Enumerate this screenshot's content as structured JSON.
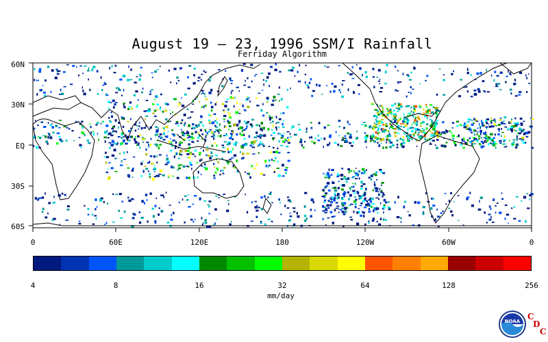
{
  "title": "August 19 – 23, 1996 SSM/I Rainfall",
  "subtitle": "Ferriday Algorithm",
  "lat_labels": [
    "60N",
    "30N",
    "EQ",
    "30S",
    "60S"
  ],
  "lon_labels": [
    "0",
    "60E",
    "120E",
    "180",
    "120W",
    "60W",
    "0"
  ],
  "colorbar": {
    "colors": [
      "#001a80",
      "#0033b3",
      "#0055ff",
      "#009999",
      "#00cccc",
      "#00ffff",
      "#008a00",
      "#00c000",
      "#00ff00",
      "#b3b300",
      "#d9d900",
      "#ffff00",
      "#ff5500",
      "#ff8000",
      "#ffaa00",
      "#990000",
      "#cc0000",
      "#ff0000"
    ],
    "tick_labels": [
      "4",
      "8",
      "16",
      "32",
      "64",
      "128",
      "256"
    ],
    "units": "mm/day"
  },
  "logo": {
    "org": "NOAA",
    "letters": [
      "C",
      "D",
      "C"
    ]
  }
}
